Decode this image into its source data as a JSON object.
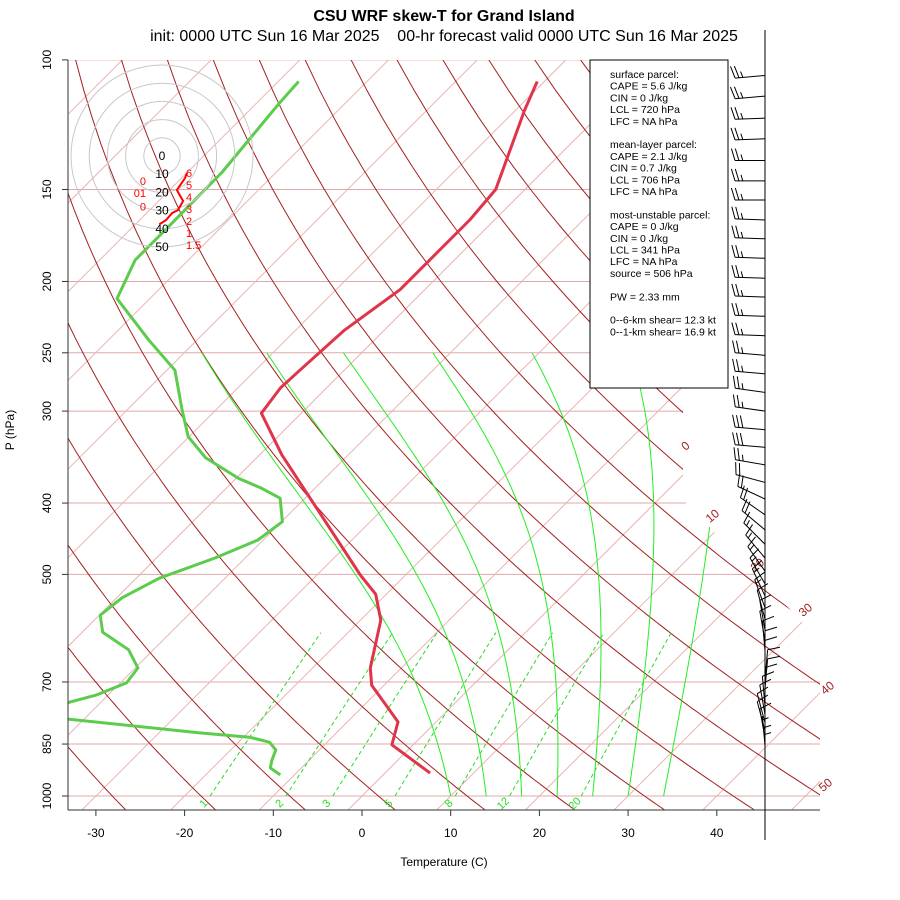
{
  "chart_data": {
    "type": "line",
    "subtype": "skew-T log-P diagram",
    "title": "CSU WRF skew-T for Grand Island",
    "subtitle": "init: 0000 UTC Sun 16 Mar 2025    00-hr forecast valid 0000 UTC Sun 16 Mar 2025",
    "xlabel": "Temperature (C)",
    "ylabel": "P (hPa)",
    "xlim": [
      -33,
      52
    ],
    "ylim": [
      1050,
      100
    ],
    "x_ticks": [
      "-30",
      "-20",
      "-10",
      "0",
      "10",
      "20",
      "30",
      "40"
    ],
    "y_ticks": [
      "100",
      "150",
      "200",
      "250",
      "300",
      "400",
      "500",
      "700",
      "850",
      "1000"
    ],
    "temperature": {
      "color": "#e0344a",
      "points": [
        {
          "p": 931,
          "t": 5.1
        },
        {
          "p": 852,
          "t": -2.4
        },
        {
          "p": 793,
          "t": -4.3
        },
        {
          "p": 707,
          "t": -11.4
        },
        {
          "p": 670,
          "t": -13.5
        },
        {
          "p": 577,
          "t": -17.7
        },
        {
          "p": 532,
          "t": -21.2
        },
        {
          "p": 501,
          "t": -25.1
        },
        {
          "p": 344,
          "t": -47.5
        },
        {
          "p": 302,
          "t": -54.5
        },
        {
          "p": 279,
          "t": -55.2
        },
        {
          "p": 264,
          "t": -55.0
        },
        {
          "p": 233,
          "t": -54.5
        },
        {
          "p": 205,
          "t": -52.8
        },
        {
          "p": 165,
          "t": -52.8
        },
        {
          "p": 150,
          "t": -53.3
        },
        {
          "p": 117,
          "t": -59.0
        },
        {
          "p": 107,
          "t": -60.8
        }
      ]
    },
    "dewpoint": {
      "color": "#5ccc4c",
      "points": [
        {
          "p": 936,
          "t": -11.6
        },
        {
          "p": 916,
          "t": -13.5
        },
        {
          "p": 894,
          "t": -14.2
        },
        {
          "p": 866,
          "t": -14.9
        },
        {
          "p": 845,
          "t": -16.5
        },
        {
          "p": 832,
          "t": -19.3
        },
        {
          "p": 821,
          "t": -25.4
        },
        {
          "p": 779,
          "t": -45.3
        },
        {
          "p": 745,
          "t": -43.5
        },
        {
          "p": 729,
          "t": -41.3
        },
        {
          "p": 702,
          "t": -39.3
        },
        {
          "p": 670,
          "t": -39.7
        },
        {
          "p": 633,
          "t": -42.8
        },
        {
          "p": 599,
          "t": -47.7
        },
        {
          "p": 568,
          "t": -49.9
        },
        {
          "p": 538,
          "t": -49.4
        },
        {
          "p": 506,
          "t": -47.4
        },
        {
          "p": 475,
          "t": -43.4
        },
        {
          "p": 449,
          "t": -40.6
        },
        {
          "p": 424,
          "t": -39.9
        },
        {
          "p": 394,
          "t": -42.8
        },
        {
          "p": 382,
          "t": -46.0
        },
        {
          "p": 370,
          "t": -49.8
        },
        {
          "p": 347,
          "t": -55.8
        },
        {
          "p": 325,
          "t": -60.1
        },
        {
          "p": 299,
          "t": -63.8
        },
        {
          "p": 264,
          "t": -69.1
        },
        {
          "p": 240,
          "t": -75.5
        },
        {
          "p": 211,
          "t": -83.7
        },
        {
          "p": 187,
          "t": -86.0
        },
        {
          "p": 168,
          "t": -86.0
        },
        {
          "p": 142,
          "t": -86.1
        },
        {
          "p": 115,
          "t": -87.4
        },
        {
          "p": 107,
          "t": -87.7
        }
      ]
    },
    "isotherm_labels": [
      "0",
      "10",
      "20",
      "30",
      "40",
      "50"
    ],
    "mixing_ratio_labels": [
      "1",
      "2",
      "3",
      "5",
      "8",
      "12",
      "20"
    ],
    "moist_adiabat_start_temps_C": [
      10,
      14,
      18,
      22,
      26,
      30,
      34
    ],
    "hodograph": {
      "ring_labels": [
        "0",
        "10",
        "20",
        "30",
        "40",
        "50"
      ],
      "points": [
        {
          "u": 13.9,
          "v": -9.4,
          "label": "6"
        },
        {
          "u": 12.8,
          "v": -12.2,
          "label": "5"
        },
        {
          "u": 8.3,
          "v": -18.9,
          "label": "4"
        },
        {
          "u": 11.7,
          "v": -25.0,
          "label": "3"
        },
        {
          "u": 8.9,
          "v": -30.0,
          "label": "2"
        },
        {
          "u": 5.6,
          "v": -31.7,
          "label": "1"
        },
        {
          "u": 2.2,
          "v": -35.6,
          "label": "1.5"
        },
        {
          "u": -1.5,
          "v": -38.0,
          "label": ""
        }
      ],
      "low_points": [
        {
          "u": 2.2,
          "v": -13.9,
          "label": "0"
        },
        {
          "u": 5.0,
          "v": -17.0,
          "label": "01"
        },
        {
          "u": 3.0,
          "v": -28.0,
          "label": "0"
        }
      ]
    },
    "wind_barbs": [
      {
        "p": 105,
        "dir": 265,
        "spd": 25
      },
      {
        "p": 112,
        "dir": 265,
        "spd": 25
      },
      {
        "p": 120,
        "dir": 268,
        "spd": 25
      },
      {
        "p": 128,
        "dir": 268,
        "spd": 25
      },
      {
        "p": 137,
        "dir": 270,
        "spd": 25
      },
      {
        "p": 146,
        "dir": 270,
        "spd": 25
      },
      {
        "p": 155,
        "dir": 270,
        "spd": 25
      },
      {
        "p": 165,
        "dir": 272,
        "spd": 25
      },
      {
        "p": 175,
        "dir": 272,
        "spd": 25
      },
      {
        "p": 186,
        "dir": 272,
        "spd": 25
      },
      {
        "p": 198,
        "dir": 272,
        "spd": 25
      },
      {
        "p": 210,
        "dir": 272,
        "spd": 25
      },
      {
        "p": 223,
        "dir": 272,
        "spd": 25
      },
      {
        "p": 237,
        "dir": 272,
        "spd": 25
      },
      {
        "p": 252,
        "dir": 275,
        "spd": 25
      },
      {
        "p": 267,
        "dir": 275,
        "spd": 25
      },
      {
        "p": 283,
        "dir": 278,
        "spd": 25
      },
      {
        "p": 300,
        "dir": 278,
        "spd": 25
      },
      {
        "p": 318,
        "dir": 275,
        "spd": 30
      },
      {
        "p": 336,
        "dir": 275,
        "spd": 30
      },
      {
        "p": 355,
        "dir": 280,
        "spd": 25
      },
      {
        "p": 375,
        "dir": 285,
        "spd": 20
      },
      {
        "p": 395,
        "dir": 295,
        "spd": 20
      },
      {
        "p": 415,
        "dir": 305,
        "spd": 20
      },
      {
        "p": 435,
        "dir": 310,
        "spd": 20
      },
      {
        "p": 455,
        "dir": 315,
        "spd": 15
      },
      {
        "p": 475,
        "dir": 320,
        "spd": 15
      },
      {
        "p": 495,
        "dir": 325,
        "spd": 15
      },
      {
        "p": 515,
        "dir": 330,
        "spd": 15
      },
      {
        "p": 535,
        "dir": 335,
        "spd": 15
      },
      {
        "p": 555,
        "dir": 340,
        "spd": 15
      },
      {
        "p": 575,
        "dir": 345,
        "spd": 10
      },
      {
        "p": 595,
        "dir": 350,
        "spd": 10
      },
      {
        "p": 615,
        "dir": 350,
        "spd": 10
      },
      {
        "p": 635,
        "dir": 355,
        "spd": 10
      },
      {
        "p": 655,
        "dir": 0,
        "spd": 10
      },
      {
        "p": 675,
        "dir": 0,
        "spd": 10
      },
      {
        "p": 695,
        "dir": 5,
        "spd": 10
      },
      {
        "p": 715,
        "dir": 5,
        "spd": 10
      },
      {
        "p": 735,
        "dir": 0,
        "spd": 10
      },
      {
        "p": 755,
        "dir": 355,
        "spd": 10
      },
      {
        "p": 775,
        "dir": 350,
        "spd": 10
      },
      {
        "p": 795,
        "dir": 345,
        "spd": 10
      },
      {
        "p": 815,
        "dir": 345,
        "spd": 10
      },
      {
        "p": 835,
        "dir": 350,
        "spd": 10
      },
      {
        "p": 855,
        "dir": 355,
        "spd": 5
      },
      {
        "p": 875,
        "dir": 0,
        "spd": 5
      },
      {
        "p": 895,
        "dir": 0,
        "spd": 5
      }
    ]
  },
  "parcel_box": {
    "lines": [
      "surface parcel:",
      "CAPE = 5.6 J/kg",
      "CIN = 0 J/kg",
      "LCL = 720 hPa",
      "LFC = NA hPa",
      "",
      "mean-layer parcel:",
      "CAPE = 2.1 J/kg",
      "CIN = 0.7 J/kg",
      "LCL = 706 hPa",
      "LFC = NA hPa",
      "",
      "most-unstable parcel:",
      "CAPE = 0 J/kg",
      "CIN = 0 J/kg",
      "LCL = 341 hPa",
      "LFC = NA hPa",
      "source = 506 hPa",
      "",
      "PW =  2.33 mm",
      "",
      "0--6-km shear= 12.3 kt",
      "0--1-km shear= 16.9 kt"
    ]
  },
  "colors": {
    "dry_adiabat": "#a32020",
    "isotherm": "#e8b4b4",
    "isobar": "#e0a8a8",
    "moist_adiabat": "#22ee22",
    "mixing_ratio": "#22dd22",
    "hodo_ring": "#c8c8c8",
    "hodo_trace": "#ff0000"
  }
}
